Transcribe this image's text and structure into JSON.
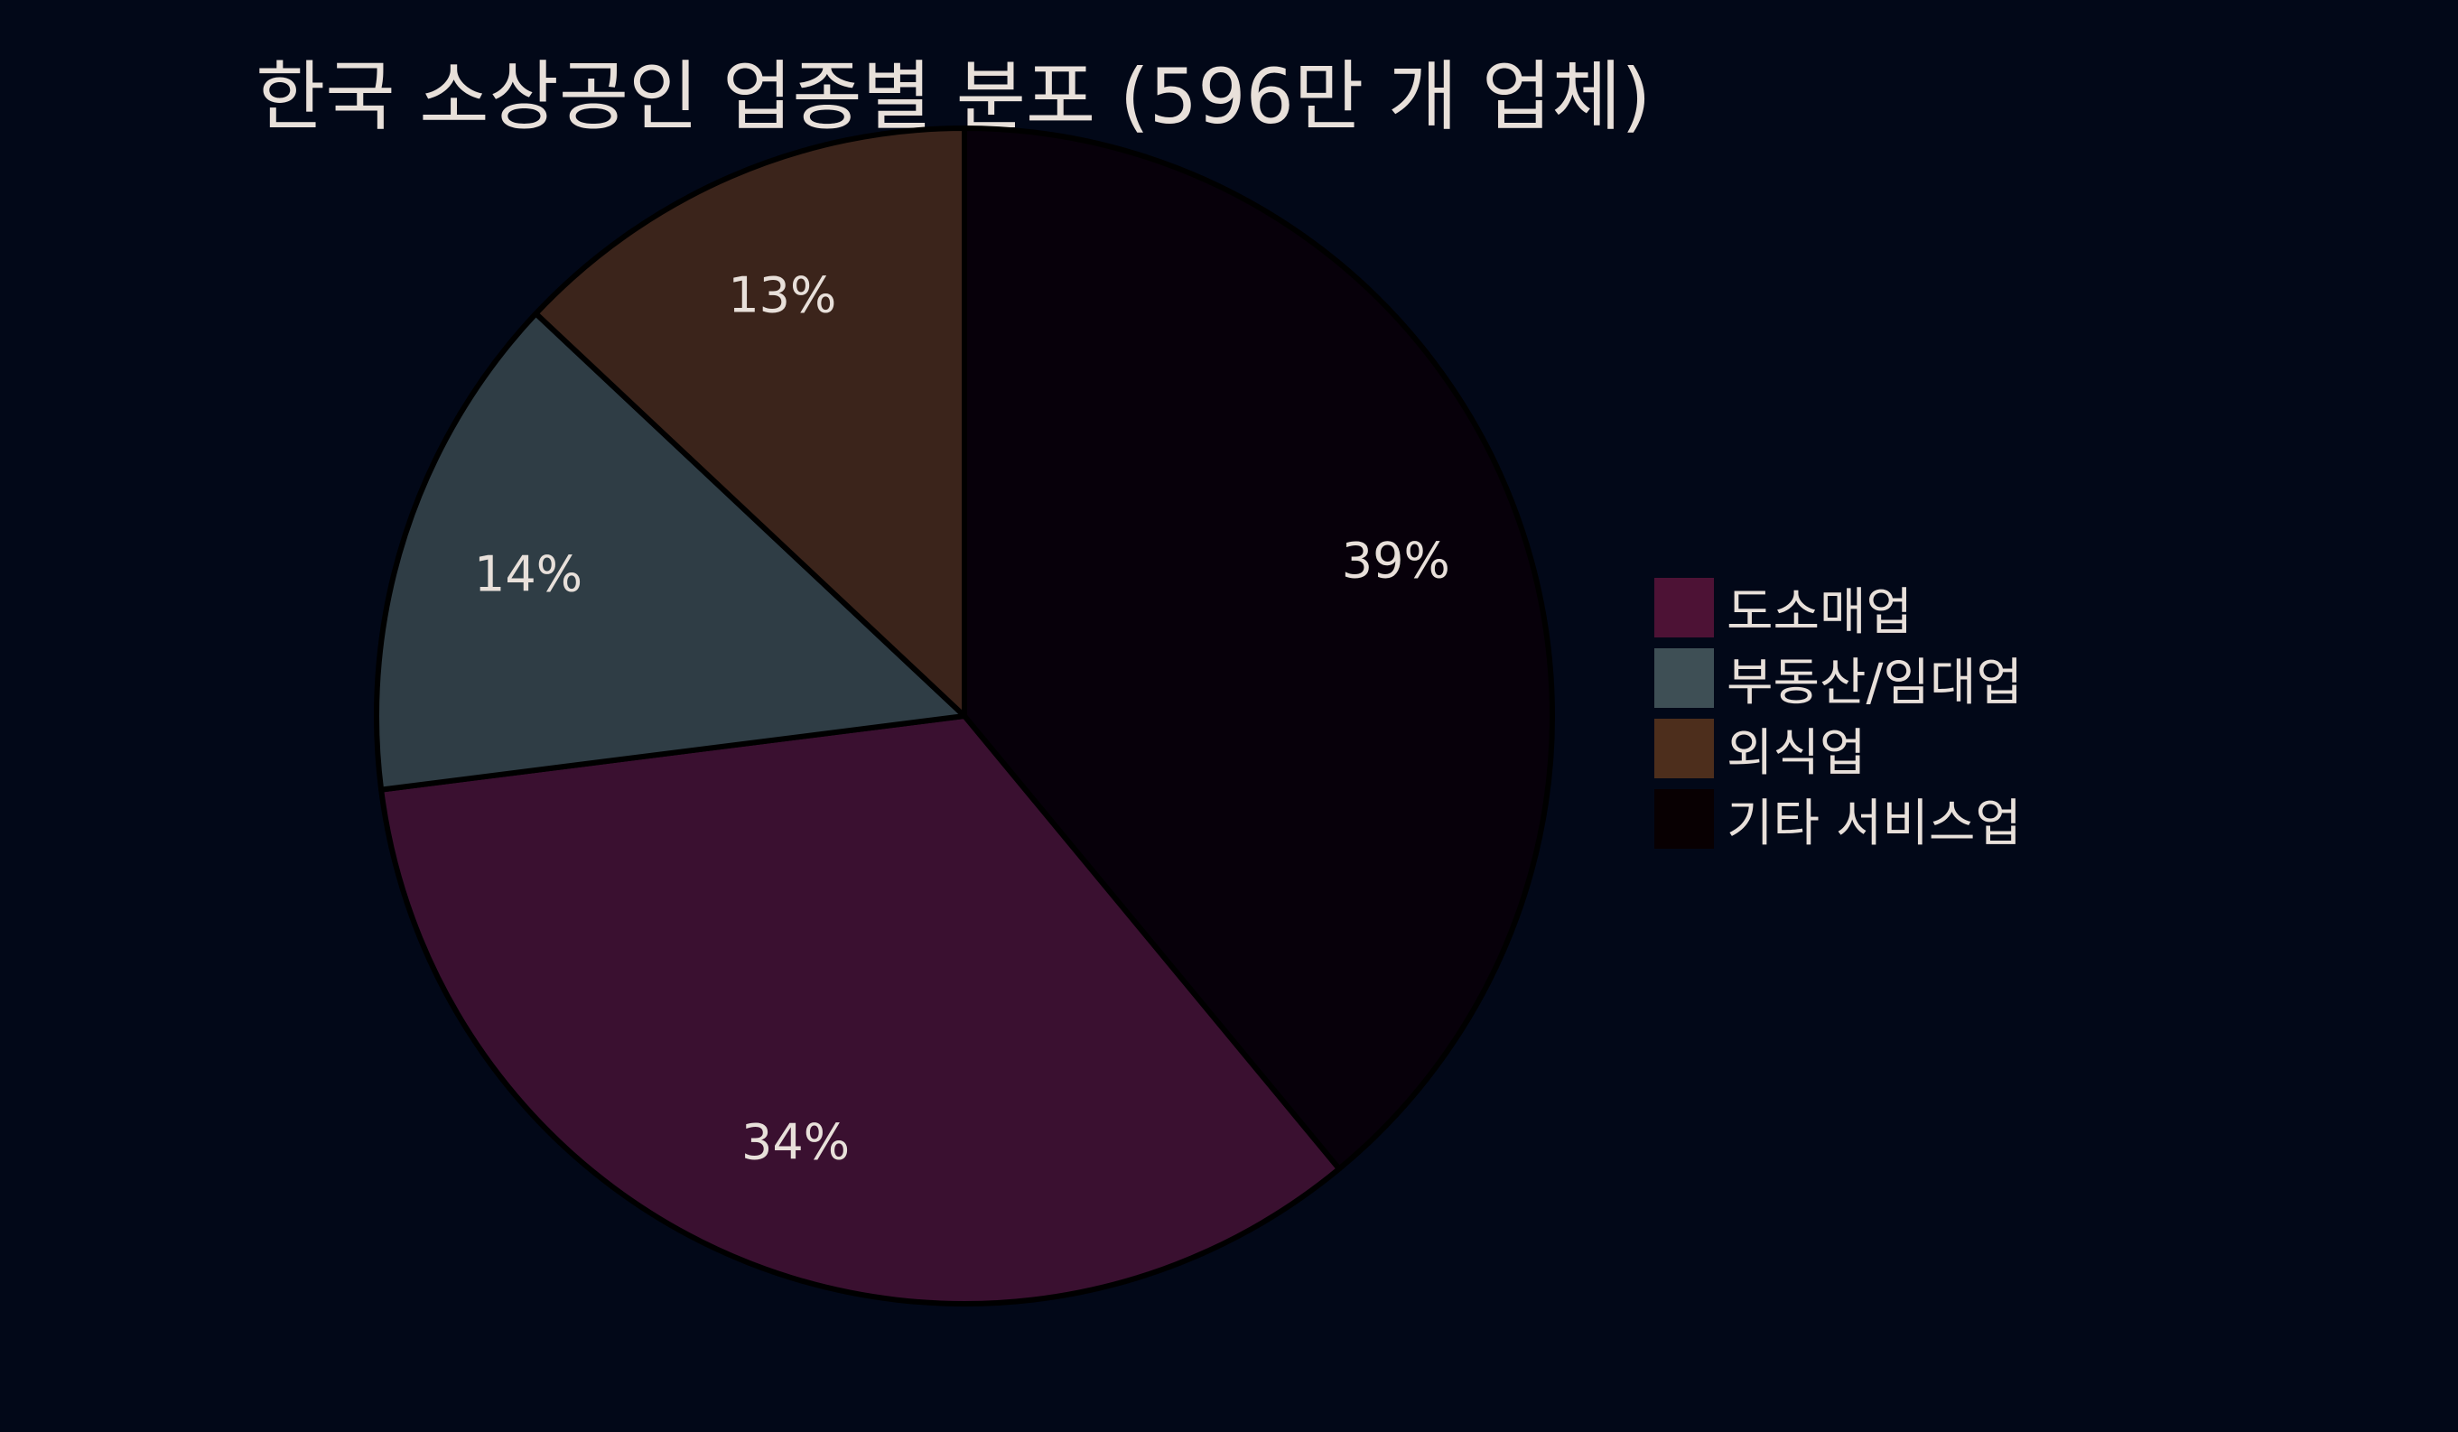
{
  "chart_data": {
    "type": "pie",
    "title": "한국 소상공인 업종별 분포 (596만 개 업체)",
    "slices": [
      {
        "label": "도소매업",
        "value": 34,
        "pct_label": "34%",
        "color": "#3a1030",
        "legend_color": "#4d1235"
      },
      {
        "label": "부동산/임대업",
        "value": 14,
        "pct_label": "14%",
        "color": "#2f3d45",
        "legend_color": "#3e4f55"
      },
      {
        "label": "외식업",
        "value": 13,
        "pct_label": "13%",
        "color": "#3b241b",
        "legend_color": "#4d2e1c"
      },
      {
        "label": "기타 서비스업",
        "value": 39,
        "pct_label": "39%",
        "color": "#07000a",
        "legend_color": "#080002"
      }
    ],
    "draw_order_clockwise_from_top": [
      "기타 서비스업",
      "도소매업",
      "부동산/임대업",
      "외식업"
    ],
    "legend_placement": "right",
    "background": "#020818",
    "edge_color": "#000000"
  }
}
